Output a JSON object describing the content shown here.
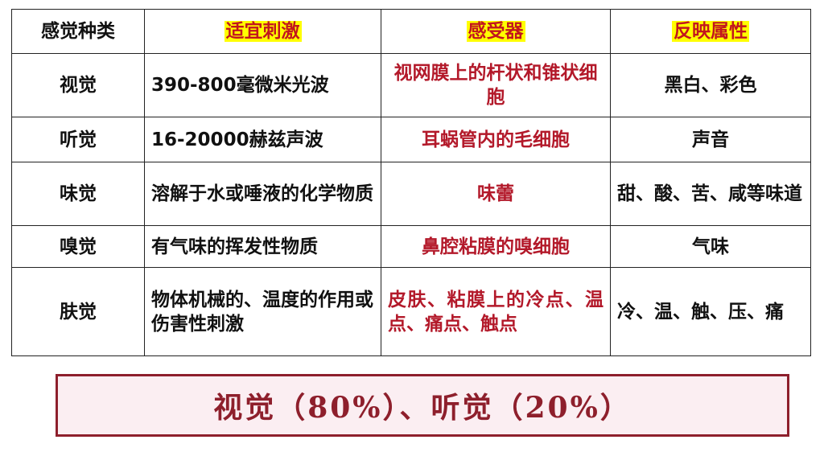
{
  "table": {
    "headers": [
      "感觉种类",
      "适宜刺激",
      "感受器",
      "反映属性"
    ],
    "rows": [
      {
        "type": "视觉",
        "stimulus": "390-800毫微米光波",
        "receptor": "视网膜上的杆状和锥状细胞",
        "property": "黑白、彩色"
      },
      {
        "type": "听觉",
        "stimulus": "16-20000赫兹声波",
        "receptor": "耳蜗管内的毛细胞",
        "property": "声音"
      },
      {
        "type": "味觉",
        "stimulus": "溶解于水或唾液的化学物质",
        "receptor": "味蕾",
        "property": "甜、酸、苦、咸等味道"
      },
      {
        "type": "嗅觉",
        "stimulus": "有气味的挥发性物质",
        "receptor": "鼻腔粘膜的嗅细胞",
        "property": "气味"
      },
      {
        "type": "肤觉",
        "stimulus": "物体机械的、温度的作用或伤害性刺激",
        "receptor": "皮肤、粘膜上的冷点、温点、痛点、触点",
        "property": "冷、温、触、压、痛"
      }
    ]
  },
  "summary": "视觉（80%）、听觉（20%）"
}
